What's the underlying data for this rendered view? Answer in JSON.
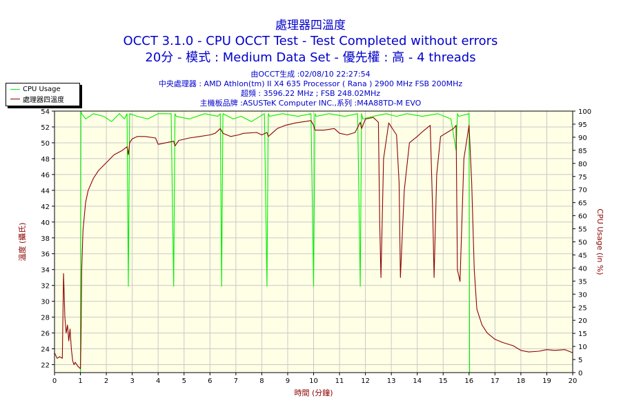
{
  "title_lines": [
    "處理器四溫度",
    "OCCT 3.1.0 - CPU OCCT Test - Test Completed without errors",
    "20分 - 模式 : Medium Data Set - 優先權 : 高 - 4 threads"
  ],
  "info_lines": [
    "由OCCT生成 :02/08/10 22:27:54",
    "中央處理器 : AMD Athlon(tm) II X4 635 Processor ( Rana ) 2900 MHz FSB 200MHz",
    "超頻 : 3596.22 MHz ; FSB 248.02MHz",
    "主機板品牌 :ASUSTeK Computer INC.,系列 :M4A88TD-M EVO"
  ],
  "colors": {
    "title": "#0000cc",
    "temp_series": "#8b0000",
    "cpu_series": "#00ee00",
    "plot_bg": "#ffffe6",
    "grid": "#c8c8c8",
    "axis_label_left": "#8b0000",
    "axis_label_right": "#8b0000",
    "xlabel": "#8b0000"
  },
  "chart_data": {
    "type": "line",
    "xlabel": "時間 (分鐘)",
    "ylabel_left": "溫度 (攝氏)",
    "ylabel_right": "CPU Usage (in %)",
    "xlim": [
      0,
      20
    ],
    "ylim_left": [
      21,
      54
    ],
    "ylim_right": [
      0,
      100
    ],
    "x_ticks": [
      0,
      1,
      2,
      3,
      4,
      5,
      6,
      7,
      8,
      9,
      10,
      11,
      12,
      13,
      14,
      15,
      16,
      17,
      18,
      19,
      20
    ],
    "y_ticks_left": [
      22,
      24,
      26,
      28,
      30,
      32,
      34,
      36,
      38,
      40,
      42,
      44,
      46,
      48,
      50,
      52,
      54
    ],
    "y_ticks_right": [
      0,
      5,
      10,
      15,
      20,
      25,
      30,
      35,
      40,
      45,
      50,
      55,
      60,
      65,
      70,
      75,
      80,
      85,
      90,
      95,
      100
    ],
    "grid": true,
    "legend_position": "top-left",
    "series": [
      {
        "name": "CPU Usage",
        "axis": "right",
        "x": [
          0,
          1.0,
          1.02,
          1.05,
          1.2,
          1.5,
          1.9,
          2.2,
          2.5,
          2.7,
          2.8,
          2.85,
          2.9,
          3.2,
          3.6,
          4.0,
          4.5,
          4.6,
          4.65,
          4.7,
          5.2,
          5.8,
          6.3,
          6.4,
          6.45,
          6.5,
          6.9,
          7.2,
          7.6,
          8.1,
          8.2,
          8.25,
          8.3,
          8.8,
          9.4,
          9.9,
          10.0,
          10.05,
          10.1,
          10.6,
          11.2,
          11.7,
          11.8,
          11.85,
          11.9,
          12.3,
          12.8,
          13.2,
          13.6,
          14.2,
          14.8,
          15.3,
          15.5,
          15.55,
          15.6,
          16.0,
          16.02,
          16.05,
          17,
          18,
          19,
          20
        ],
        "y": [
          0,
          0,
          100,
          99,
          97,
          99,
          98,
          96,
          99,
          97,
          99,
          33,
          99,
          98,
          97,
          99,
          99,
          33,
          99,
          98,
          97,
          99,
          98,
          99,
          33,
          99,
          97,
          98,
          96,
          99,
          33,
          99,
          98,
          99,
          98,
          99,
          33,
          99,
          98,
          99,
          98,
          99,
          33,
          99,
          97,
          98,
          99,
          98,
          99,
          98,
          99,
          97,
          85,
          99,
          98,
          99,
          0,
          0,
          0,
          0,
          0,
          0
        ]
      },
      {
        "name": "處理器四溫度",
        "axis": "left",
        "x": [
          0,
          0.1,
          0.2,
          0.3,
          0.35,
          0.4,
          0.45,
          0.5,
          0.55,
          0.6,
          0.65,
          0.7,
          0.75,
          0.8,
          0.9,
          1.0,
          1.02,
          1.05,
          1.1,
          1.2,
          1.3,
          1.5,
          1.7,
          2.0,
          2.3,
          2.6,
          2.8,
          2.85,
          2.9,
          3.0,
          3.2,
          3.5,
          3.9,
          4.0,
          4.3,
          4.6,
          4.65,
          4.8,
          5.2,
          5.6,
          6.0,
          6.2,
          6.4,
          6.5,
          6.8,
          7.1,
          7.3,
          7.8,
          8.0,
          8.2,
          8.25,
          8.6,
          8.9,
          9.3,
          9.7,
          9.9,
          10.0,
          10.05,
          10.4,
          10.8,
          11.0,
          11.3,
          11.6,
          11.8,
          11.85,
          12.0,
          12.3,
          12.5,
          12.55,
          12.6,
          12.7,
          12.9,
          13.2,
          13.3,
          13.35,
          13.5,
          13.7,
          14.0,
          14.2,
          14.5,
          14.6,
          14.65,
          14.75,
          14.9,
          15.2,
          15.4,
          15.5,
          15.55,
          15.65,
          15.8,
          16.0,
          16.1,
          16.2,
          16.3,
          16.5,
          16.7,
          17.0,
          17.3,
          17.7,
          18.0,
          18.3,
          18.7,
          19.0,
          19.3,
          19.7,
          20
        ],
        "y": [
          23.5,
          22.8,
          23.0,
          22.8,
          33.5,
          28,
          26,
          27,
          25,
          26.5,
          24,
          22.5,
          22,
          22.3,
          21.8,
          21.5,
          25,
          34,
          39,
          42.5,
          44,
          45.5,
          46.5,
          47.5,
          48.5,
          49,
          49.5,
          48.5,
          50,
          50.5,
          50.8,
          50.8,
          50.6,
          49.8,
          50,
          50.2,
          49.6,
          50.3,
          50.6,
          50.8,
          51,
          51.2,
          51.8,
          51.2,
          50.8,
          51,
          51.2,
          51.3,
          51,
          51.3,
          50.8,
          51.8,
          52.2,
          52.5,
          52.7,
          52.8,
          52.2,
          51.6,
          51.6,
          51.8,
          51.2,
          51.0,
          51.3,
          52.6,
          51.8,
          53.0,
          53.2,
          52.6,
          40,
          33,
          48,
          52.5,
          51,
          45,
          33,
          44,
          50,
          50.8,
          51.4,
          52.2,
          41,
          33,
          46,
          50.8,
          51.4,
          51.8,
          52.2,
          34,
          32.5,
          48,
          52.2,
          45,
          34,
          29,
          27,
          26,
          25.2,
          24.8,
          24.4,
          23.8,
          23.6,
          23.7,
          23.9,
          23.8,
          23.9,
          23.5
        ]
      }
    ]
  }
}
